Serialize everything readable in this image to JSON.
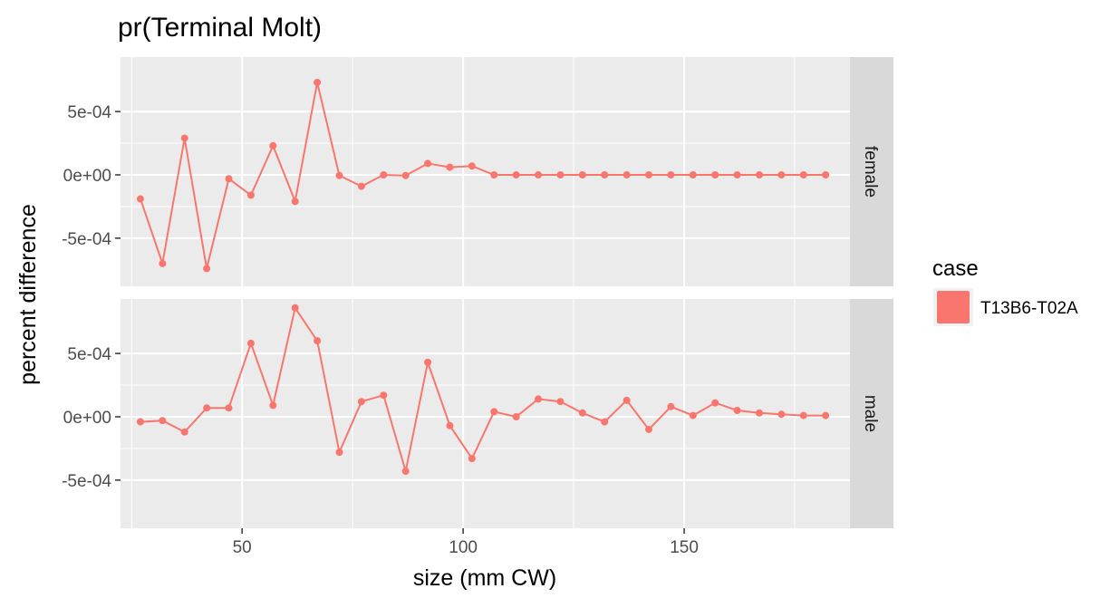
{
  "chart_data": {
    "type": "line",
    "title": "pr(Terminal Molt)",
    "xlabel": "size (mm CW)",
    "ylabel": "percent difference",
    "xlim": [
      22.5,
      187.5
    ],
    "ylim": [
      -0.00088,
      0.00093
    ],
    "x_ticks": [
      50,
      100,
      150
    ],
    "x_tick_labels": [
      "50",
      "100",
      "150"
    ],
    "y_ticks": [
      -0.0005,
      0,
      0.0005
    ],
    "y_tick_labels": [
      "-5e-04",
      "0e+00",
      "5e-04"
    ],
    "grid": true,
    "legend": {
      "title": "case",
      "position": "right",
      "entries": [
        "T13B6-T02A"
      ]
    },
    "series_color": "#F8766D",
    "facets": [
      {
        "label": "female",
        "series": [
          {
            "name": "T13B6-T02A",
            "x": [
              27,
              32,
              37,
              42,
              47,
              52,
              57,
              62,
              67,
              72,
              77,
              82,
              87,
              92,
              97,
              102,
              107,
              112,
              117,
              122,
              127,
              132,
              137,
              142,
              147,
              152,
              157,
              162,
              167,
              172,
              177,
              182
            ],
            "y": [
              -0.00019,
              -0.0007,
              0.00029,
              -0.00074,
              -3e-05,
              -0.00016,
              0.00023,
              -0.00021,
              0.00073,
              -5e-06,
              -9e-05,
              0,
              -5e-06,
              9e-05,
              6e-05,
              7e-05,
              0,
              0,
              0,
              0,
              0,
              0,
              0,
              0,
              0,
              0,
              0,
              0,
              0,
              0,
              0,
              0
            ]
          }
        ]
      },
      {
        "label": "male",
        "series": [
          {
            "name": "T13B6-T02A",
            "x": [
              27,
              32,
              37,
              42,
              47,
              52,
              57,
              62,
              67,
              72,
              77,
              82,
              87,
              92,
              97,
              102,
              107,
              112,
              117,
              122,
              127,
              132,
              137,
              142,
              147,
              152,
              157,
              162,
              167,
              172,
              177,
              182
            ],
            "y": [
              -4e-05,
              -3e-05,
              -0.00012,
              7e-05,
              7e-05,
              0.00058,
              9e-05,
              0.00086,
              0.0006,
              -0.00028,
              0.00012,
              0.00017,
              -0.00043,
              0.00043,
              -7e-05,
              -0.00033,
              4e-05,
              0,
              0.00014,
              0.00012,
              3e-05,
              -4e-05,
              0.00013,
              -0.0001,
              8e-05,
              1e-05,
              0.00011,
              5e-05,
              3e-05,
              2e-05,
              1e-05,
              1e-05
            ]
          }
        ]
      }
    ]
  }
}
